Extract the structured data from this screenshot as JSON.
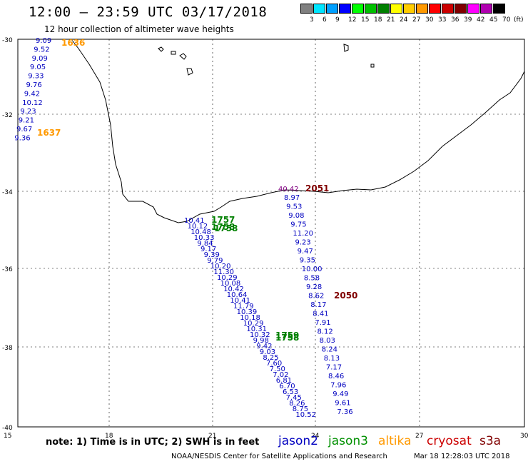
{
  "header": {
    "title": "12:00 – 23:59 UTC 03/17/2018",
    "subtitle": "12 hour collection of altimeter wave heights"
  },
  "colorbar": {
    "unit": "(ft)",
    "cells": [
      {
        "color": "#808080",
        "label": "3"
      },
      {
        "color": "#00e5ff",
        "label": "6"
      },
      {
        "color": "#00a0ff",
        "label": "9"
      },
      {
        "color": "#0000ff",
        "label": "12"
      },
      {
        "color": "#00ff00",
        "label": "15"
      },
      {
        "color": "#00c000",
        "label": "18"
      },
      {
        "color": "#008000",
        "label": "21"
      },
      {
        "color": "#ffff00",
        "label": "24"
      },
      {
        "color": "#ffcc00",
        "label": "27"
      },
      {
        "color": "#ff9900",
        "label": "30"
      },
      {
        "color": "#ff0000",
        "label": "33"
      },
      {
        "color": "#cc0000",
        "label": "36"
      },
      {
        "color": "#800000",
        "label": "39"
      },
      {
        "color": "#ff00ff",
        "label": "42"
      },
      {
        "color": "#b000b0",
        "label": "45"
      },
      {
        "color": "#000000",
        "label": "70"
      }
    ]
  },
  "map": {
    "lon_ticks": [
      "15",
      "18",
      "21",
      "24",
      "27",
      "30"
    ],
    "lat_ticks": [
      "-30",
      "-32",
      "-34",
      "-36",
      "-38",
      "-40"
    ],
    "tracks": [
      {
        "name": "track-w",
        "color": "#0000c0",
        "values": [
          "9.09",
          "9.52",
          "9.09",
          "9.05",
          "9.33",
          "9.76",
          "9.42",
          "10.12",
          "9.23",
          "9.21",
          "9.67",
          "9.36"
        ]
      },
      {
        "name": "track-jason2-sw",
        "color": "#0000c0",
        "values": [
          "10.41",
          "10.12",
          "10.48",
          "10.33",
          "9.84",
          "9.17",
          "9.39",
          "9.79",
          "10.20",
          "11.30",
          "10.29",
          "10.08",
          "10.42",
          "10.64",
          "10.41",
          "11.79",
          "10.39",
          "10.18",
          "10.29",
          "10.31",
          "10.32",
          "9.98",
          "9.42",
          "9.03",
          "8.25",
          "7.60",
          "7.50",
          "7.02",
          "6.81",
          "6.70",
          "6.53",
          "7.45",
          "8.26",
          "8.75",
          "10.52"
        ]
      },
      {
        "name": "track-east",
        "color": "#0000c0",
        "values": [
          "8.97",
          "9.53",
          "9.08",
          "9.75",
          "11.20",
          "9.23",
          "9.47",
          "9.35",
          "10.00",
          "8.58",
          "9.28",
          "8.62",
          "8.17",
          "8.41",
          "7.91",
          "8.12",
          "8.03",
          "8.24",
          "8.13",
          "7.17",
          "8.46",
          "7.96",
          "9.49",
          "9.61",
          "7.36"
        ]
      }
    ],
    "time_labels": [
      {
        "text": "1636",
        "color": "#ff9900"
      },
      {
        "text": "1637",
        "color": "#ff9900"
      },
      {
        "text": "2051",
        "color": "#800000"
      },
      {
        "text": "40.42",
        "color": "#800080"
      },
      {
        "text": "1757",
        "color": "#008000"
      },
      {
        "text": "1758",
        "color": "#008000"
      },
      {
        "text": "1758",
        "color": "#008000"
      },
      {
        "text": "2050",
        "color": "#800000"
      },
      {
        "text": "1759",
        "color": "#008000"
      },
      {
        "text": "1758",
        "color": "#008000"
      }
    ]
  },
  "footer": {
    "note": "note: 1) Time is in UTC; 2) SWH is in feet",
    "legend": [
      {
        "text": "jason2",
        "color": "#0000c0"
      },
      {
        "text": "jason3",
        "color": "#009000"
      },
      {
        "text": "altika",
        "color": "#ff9900"
      },
      {
        "text": "cryosat",
        "color": "#cc0000"
      },
      {
        "text": "s3a",
        "color": "#800000"
      }
    ],
    "credit": "NOAA/NESDIS Center for Satellite Applications and Research",
    "timestamp": "Mar 18 12:28:03 UTC 2018"
  }
}
